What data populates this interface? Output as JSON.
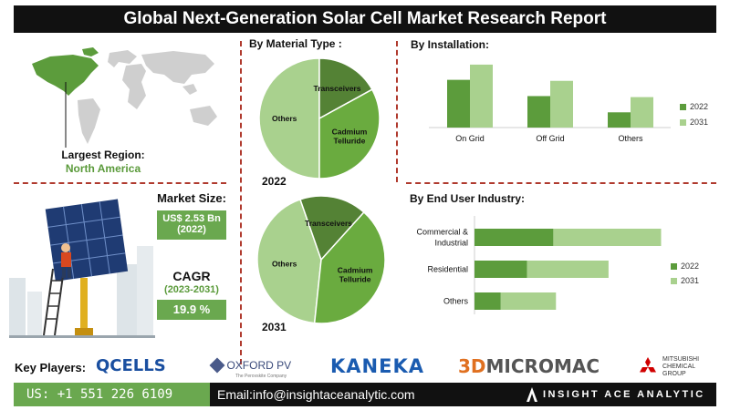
{
  "title": "Global Next-Generation Solar Cell Market Research Report",
  "left": {
    "largest_region_label": "Largest Region:",
    "largest_region_value": "North America",
    "market_size_label": "Market Size:",
    "market_size_value": "US$ 2.53 Bn",
    "market_size_year": "(2022)",
    "cagr_label": "CAGR",
    "cagr_period": "(2023-2031)",
    "cagr_value": "19.9 %"
  },
  "key_players": {
    "label": "Key Players:",
    "players": [
      "QCELLS",
      "OXFORD PV",
      "The Perovskite Company",
      "KANEKA",
      "3D",
      "MICROMAC",
      "MITSUBISHI",
      "CHEMICAL",
      "GROUP"
    ]
  },
  "footer": {
    "phone": "US: +1 551 226 6109",
    "email": "Email:info@insightaceanalytic.com",
    "brand": "INSIGHT ACE ANALYTIC"
  },
  "colors": {
    "dark_green": "#5c9c3c",
    "light_green": "#a9d18e",
    "mid_green": "#6aa84f",
    "accent_red": "#b03a2e",
    "pie_others": "#a9d18e",
    "pie_transceivers": "#548235",
    "pie_cadmium": "#6aab3f"
  },
  "chart_data": [
    {
      "type": "pie",
      "title": "By Material Type :",
      "year_label": "2022",
      "slices": [
        {
          "label": "Others",
          "value": 50
        },
        {
          "label": "Transceivers",
          "value": 17
        },
        {
          "label": "Cadmium Telluride",
          "value": 33
        }
      ]
    },
    {
      "type": "pie",
      "year_label": "2031",
      "slices": [
        {
          "label": "Others",
          "value": 43
        },
        {
          "label": "Transceivers",
          "value": 17
        },
        {
          "label": "Cadmium Telluride",
          "value": 40
        }
      ]
    },
    {
      "type": "bar",
      "title": "By Installation:",
      "categories": [
        "On Grid",
        "Off Grid",
        "Others"
      ],
      "series": [
        {
          "name": "2022",
          "values": [
            47,
            31,
            15
          ]
        },
        {
          "name": "2031",
          "values": [
            62,
            46,
            30
          ]
        }
      ],
      "ylim": [
        0,
        70
      ]
    },
    {
      "type": "bar",
      "orientation": "horizontal",
      "stacked": true,
      "title": "By End User Industry:",
      "categories": [
        "Commercial & Industrial",
        "Residential",
        "Others"
      ],
      "series": [
        {
          "name": "2022",
          "values": [
            60,
            40,
            20
          ]
        },
        {
          "name": "2031",
          "values": [
            82,
            62,
            42
          ]
        }
      ],
      "xlim": [
        0,
        150
      ]
    }
  ]
}
